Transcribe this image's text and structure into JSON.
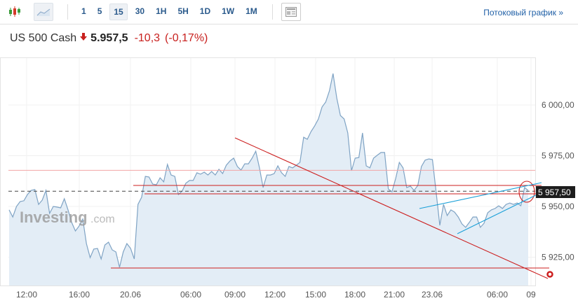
{
  "toolbar": {
    "chart_type_icons": [
      "candlestick-icon",
      "area-chart-icon"
    ],
    "timeframes": [
      "1",
      "5",
      "15",
      "30",
      "1H",
      "5H",
      "1D",
      "1W",
      "1M"
    ],
    "active_timeframe": "15",
    "layout_icon": "layout-icon",
    "stream_link": "Потоковый график »"
  },
  "instrument": {
    "name": "US 500 Cash",
    "direction": "down",
    "price": "5.957,5",
    "change": "-10,3",
    "change_pct": "(-0,17%)"
  },
  "watermark": {
    "brand": "Investing",
    "suffix": ".com"
  },
  "chart_data": {
    "type": "area",
    "title": "",
    "xlabel": "",
    "ylabel": "",
    "ylim": [
      5908,
      6027
    ],
    "yticks": [
      "6 000,00",
      "5 975,00",
      "5 950,00",
      "5 925,00"
    ],
    "ytick_values": [
      6000,
      5975,
      5950,
      5925
    ],
    "xticks": [
      "12:00",
      "16:00",
      "20.06",
      "06:00",
      "09:00",
      "12:00",
      "15:00",
      "18:00",
      "21:00",
      "23.06",
      "06:00",
      "09"
    ],
    "last_price_label": "5 957,50",
    "last_price": 5957.5,
    "previous_close": 5967.8,
    "grid": true,
    "colors": {
      "line": "#7fa3c4",
      "fill": "#e3edf6",
      "annotation": "#cc1f1f",
      "trendline": "#1aa0d8",
      "prev_close": "#f2a5a5"
    },
    "series": [
      {
        "values": [
          5948.3,
          5944.8,
          5950.0,
          5952.4,
          5952.8,
          5955.9,
          5957.9,
          5958.3,
          5951.0,
          5953.1,
          5957.9,
          5946.6,
          5950.0,
          5949.7,
          5949.3,
          5953.8,
          5948.3,
          5942.1,
          5937.9,
          5940.3,
          5943.8,
          5931.7,
          5924.8,
          5929.0,
          5929.3,
          5924.1,
          5931.0,
          5932.4,
          5928.6,
          5927.6,
          5920.0,
          5927.6,
          5931.7,
          5929.3,
          5924.1,
          5951.0,
          5954.5,
          5964.8,
          5964.5,
          5961.0,
          5960.7,
          5964.1,
          5962.1,
          5970.7,
          5965.5,
          5964.8,
          5955.9,
          5957.6,
          5961.4,
          5962.8,
          5962.8,
          5966.6,
          5965.9,
          5966.9,
          5965.5,
          5967.2,
          5965.5,
          5968.3,
          5966.2,
          5970.3,
          5972.4,
          5973.8,
          5969.7,
          5967.9,
          5971.0,
          5971.0,
          5973.8,
          5977.2,
          5969.0,
          5959.3,
          5965.5,
          5965.5,
          5966.2,
          5970.0,
          5966.6,
          5964.8,
          5969.7,
          5969.0,
          5970.3,
          5971.7,
          5984.1,
          5983.1,
          5986.9,
          5989.7,
          5993.1,
          5999.0,
          6001.4,
          6006.9,
          6015.5,
          6003.4,
          5994.8,
          5993.1,
          5986.2,
          5967.6,
          5973.8,
          5974.1,
          5986.2,
          5970.0,
          5969.0,
          5973.8,
          5975.2,
          5976.6,
          5976.6,
          5958.6,
          5957.2,
          5963.8,
          5971.7,
          5969.0,
          5959.3,
          5960.0,
          5957.9,
          5960.3,
          5969.7,
          5972.8,
          5973.4,
          5973.1,
          5956.9,
          5940.7,
          5951.0,
          5945.5,
          5948.3,
          5947.2,
          5944.8,
          5941.4,
          5939.7,
          5942.1,
          5944.8,
          5944.8,
          5939.7,
          5941.7,
          5946.9,
          5948.3,
          5949.0,
          5950.3,
          5949.0,
          5951.0,
          5951.7,
          5951.0,
          5951.7,
          5950.3,
          5959.3,
          5957.9
        ]
      }
    ]
  }
}
